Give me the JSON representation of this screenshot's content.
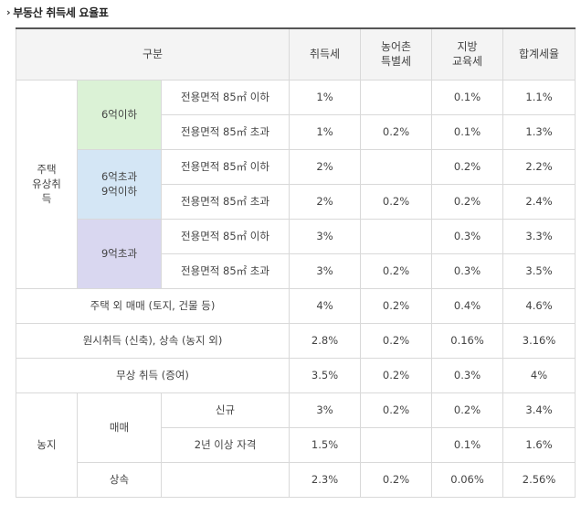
{
  "title": "부동산 취득세 요율표",
  "header": {
    "category": "구분",
    "acq_tax": "취득세",
    "rural_tax_l1": "농어촌",
    "rural_tax_l2": "특별세",
    "edu_tax_l1": "지방",
    "edu_tax_l2": "교육세",
    "total": "합계세율"
  },
  "housing": {
    "label_l1": "주택",
    "label_l2": "유상취",
    "label_l3": "득",
    "groups": [
      {
        "label_l1": "6억이하",
        "label_l2": "",
        "color": "#dbf2d6",
        "rows": [
          {
            "area": "전용면적 85㎡ 이하",
            "acq": "1%",
            "rural": "",
            "edu": "0.1%",
            "total": "1.1%"
          },
          {
            "area": "전용면적 85㎡ 초과",
            "acq": "1%",
            "rural": "0.2%",
            "edu": "0.1%",
            "total": "1.3%"
          }
        ]
      },
      {
        "label_l1": "6억초과",
        "label_l2": "9억이하",
        "color": "#d4e6f5",
        "rows": [
          {
            "area": "전용면적 85㎡ 이하",
            "acq": "2%",
            "rural": "",
            "edu": "0.2%",
            "total": "2.2%"
          },
          {
            "area": "전용면적 85㎡ 초과",
            "acq": "2%",
            "rural": "0.2%",
            "edu": "0.2%",
            "total": "2.4%"
          }
        ]
      },
      {
        "label_l1": "9억초과",
        "label_l2": "",
        "color": "#d9d7f0",
        "rows": [
          {
            "area": "전용면적 85㎡ 이하",
            "acq": "3%",
            "rural": "",
            "edu": "0.3%",
            "total": "3.3%"
          },
          {
            "area": "전용면적 85㎡ 초과",
            "acq": "3%",
            "rural": "0.2%",
            "edu": "0.3%",
            "total": "3.5%"
          }
        ]
      }
    ]
  },
  "other_rows": [
    {
      "label": "주택 외 매매 (토지, 건물 등)",
      "acq": "4%",
      "rural": "0.2%",
      "edu": "0.4%",
      "total": "4.6%"
    },
    {
      "label": "원시취득 (신축), 상속 (농지 외)",
      "acq": "2.8%",
      "rural": "0.2%",
      "edu": "0.16%",
      "total": "3.16%"
    },
    {
      "label": "무상 취득 (증여)",
      "acq": "3.5%",
      "rural": "0.2%",
      "edu": "0.3%",
      "total": "4%"
    }
  ],
  "farmland": {
    "label": "농지",
    "trade_label": "매매",
    "trade_rows": [
      {
        "label": "신규",
        "acq": "3%",
        "rural": "0.2%",
        "edu": "0.2%",
        "total": "3.4%"
      },
      {
        "label": "2년 이상 자격",
        "acq": "1.5%",
        "rural": "",
        "edu": "0.1%",
        "total": "1.6%"
      }
    ],
    "inherit": {
      "label": "상속",
      "extra": "",
      "acq": "2.3%",
      "rural": "0.2%",
      "edu": "0.06%",
      "total": "2.56%"
    }
  }
}
